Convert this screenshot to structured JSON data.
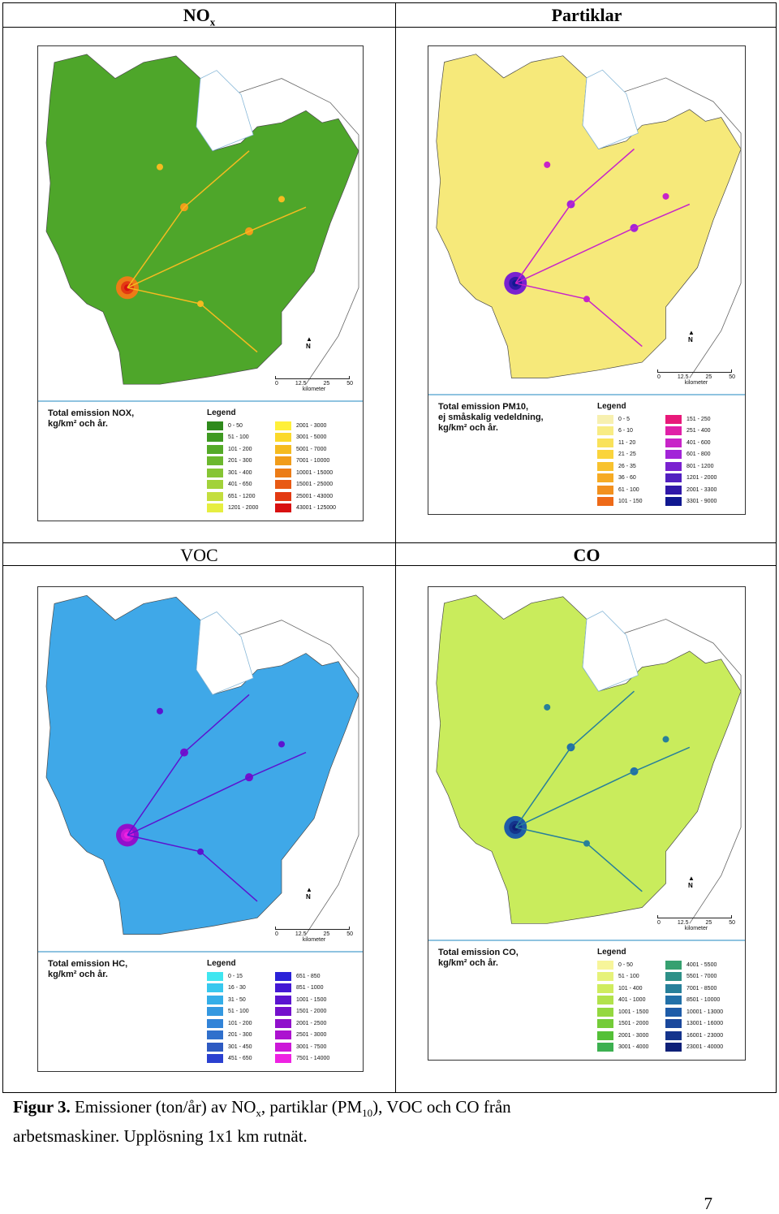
{
  "headers": {
    "nox": {
      "main": "NO",
      "sub": "x"
    },
    "particles": "Partiklar",
    "voc": "VOC",
    "co": "CO"
  },
  "maps": {
    "nox": {
      "title": "Total emission NOX,\nkg/km² och år.",
      "legend_heading": "Legend",
      "land_color": "#4ea62a",
      "legend": [
        {
          "label": "0 - 50",
          "color": "#2f8a1c"
        },
        {
          "label": "51 - 100",
          "color": "#3f9a22"
        },
        {
          "label": "101 - 200",
          "color": "#55aa28"
        },
        {
          "label": "201 - 300",
          "color": "#6cb82e"
        },
        {
          "label": "301 - 400",
          "color": "#86c534"
        },
        {
          "label": "401 - 650",
          "color": "#a2d23a"
        },
        {
          "label": "651 - 1200",
          "color": "#c4de3e"
        },
        {
          "label": "1201 - 2000",
          "color": "#e6ee40"
        },
        {
          "label": "2001 - 3000",
          "color": "#fff03a"
        },
        {
          "label": "3001 - 5000",
          "color": "#fbd92a"
        },
        {
          "label": "5001 - 7000",
          "color": "#f5bb20"
        },
        {
          "label": "7001 - 10000",
          "color": "#f19c1a"
        },
        {
          "label": "10001 - 15000",
          "color": "#ec7c16"
        },
        {
          "label": "15001 - 25000",
          "color": "#e85a14"
        },
        {
          "label": "25001 - 43000",
          "color": "#e33a12"
        },
        {
          "label": "43001 - 125000",
          "color": "#d81010"
        }
      ]
    },
    "particles": {
      "title": "Total emission PM10,\nej småskalig vedeldning,\nkg/km² och år.",
      "legend_heading": "Legend",
      "land_color": "#f6e97a",
      "legend": [
        {
          "label": "0 - 5",
          "color": "#f7f0b0"
        },
        {
          "label": "6 - 10",
          "color": "#f8ec84"
        },
        {
          "label": "11 - 20",
          "color": "#f9e25a"
        },
        {
          "label": "21 - 25",
          "color": "#fad43c"
        },
        {
          "label": "26 - 35",
          "color": "#f8c22e"
        },
        {
          "label": "36 - 60",
          "color": "#f6ab24"
        },
        {
          "label": "61 - 100",
          "color": "#f2901e"
        },
        {
          "label": "101 - 150",
          "color": "#ee6a18"
        },
        {
          "label": "151 - 250",
          "color": "#e8197a"
        },
        {
          "label": "251 - 400",
          "color": "#e020a8"
        },
        {
          "label": "401 - 600",
          "color": "#c824c8"
        },
        {
          "label": "601 - 800",
          "color": "#a224d8"
        },
        {
          "label": "801 - 1200",
          "color": "#7a22d0"
        },
        {
          "label": "1201 - 2000",
          "color": "#5220c0"
        },
        {
          "label": "2001 - 3300",
          "color": "#3018a8"
        },
        {
          "label": "3301 - 9000",
          "color": "#101890"
        }
      ]
    },
    "voc": {
      "title": "Total emission HC,\nkg/km² och år.",
      "legend_heading": "Legend",
      "land_color": "#3fa8e8",
      "legend": [
        {
          "label": "0 - 15",
          "color": "#3fe6f0"
        },
        {
          "label": "16 - 30",
          "color": "#38c8ee"
        },
        {
          "label": "31 - 50",
          "color": "#34aee8"
        },
        {
          "label": "51 - 100",
          "color": "#3498e0"
        },
        {
          "label": "101 - 200",
          "color": "#3284d8"
        },
        {
          "label": "201 - 300",
          "color": "#3070cc"
        },
        {
          "label": "301 - 450",
          "color": "#2e5ac2"
        },
        {
          "label": "451 - 650",
          "color": "#2a40d0"
        },
        {
          "label": "651 - 850",
          "color": "#2a22d8"
        },
        {
          "label": "851 - 1000",
          "color": "#4418d4"
        },
        {
          "label": "1001 - 1500",
          "color": "#5c14d0"
        },
        {
          "label": "1501 - 2000",
          "color": "#7410cc"
        },
        {
          "label": "2001 - 2500",
          "color": "#9010cc"
        },
        {
          "label": "2501 - 3000",
          "color": "#ac12d0"
        },
        {
          "label": "3001 - 7500",
          "color": "#cc18d8"
        },
        {
          "label": "7501 - 14000",
          "color": "#ee22e2"
        }
      ]
    },
    "co": {
      "title": "Total emission CO,\nkg/km² och år.",
      "legend_heading": "Legend",
      "land_color": "#c9ec5c",
      "legend": [
        {
          "label": "0 - 50",
          "color": "#f7f59a"
        },
        {
          "label": "51 - 100",
          "color": "#e6f27a"
        },
        {
          "label": "101 - 400",
          "color": "#cfec5e"
        },
        {
          "label": "401 - 1000",
          "color": "#b2e24c"
        },
        {
          "label": "1001 - 1500",
          "color": "#94d840"
        },
        {
          "label": "1501 - 2000",
          "color": "#74cc38"
        },
        {
          "label": "2001 - 3000",
          "color": "#54c038"
        },
        {
          "label": "3001 - 4000",
          "color": "#3cb050"
        },
        {
          "label": "4001 - 5500",
          "color": "#36a070"
        },
        {
          "label": "5501 - 7000",
          "color": "#2e9088"
        },
        {
          "label": "7001 - 8500",
          "color": "#28809a"
        },
        {
          "label": "8501 - 10000",
          "color": "#2270a8"
        },
        {
          "label": "10001 - 13000",
          "color": "#1e5ca8"
        },
        {
          "label": "13001 - 16000",
          "color": "#1a489c"
        },
        {
          "label": "16001 - 23000",
          "color": "#14348c"
        },
        {
          "label": "23001 - 40000",
          "color": "#0e2078"
        }
      ]
    }
  },
  "scale": {
    "ticks": [
      "0",
      "12.5",
      "25",
      "50"
    ],
    "unit": "kilometer",
    "north": "N"
  },
  "caption": {
    "label": "Figur 3.",
    "text_1": " Emissioner (ton/år) av NO",
    "sub_x": "x",
    "text_2": ", partiklar (PM",
    "sub_10": "10",
    "text_3": "), VOC och CO  från",
    "line_2": "arbetsmaskiner. Upplösning 1x1 km rutnät."
  },
  "page_number": "7"
}
